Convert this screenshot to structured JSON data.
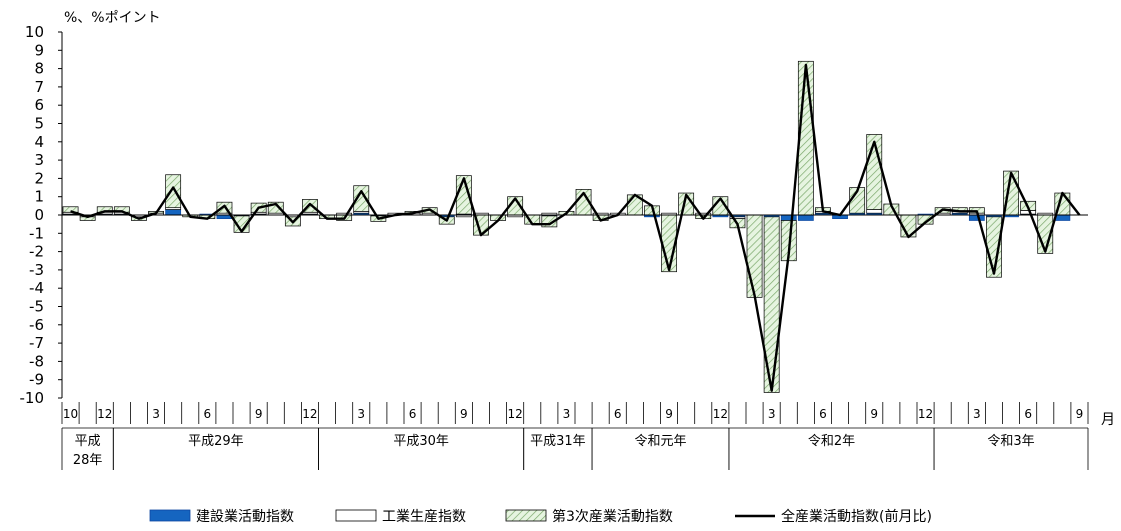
{
  "chart_data": {
    "type": "bar",
    "title": "",
    "ylabel": "%、%ポイント",
    "xlabel": "月",
    "ylim": [
      -10,
      10
    ],
    "y_ticks": [
      10,
      9,
      8,
      7,
      6,
      5,
      4,
      3,
      2,
      1,
      0,
      -1,
      -2,
      -3,
      -4,
      -5,
      -6,
      -7,
      -8,
      -9,
      -10
    ],
    "month_labels": [
      "10",
      "12",
      "3",
      "6",
      "9",
      "12",
      "3",
      "6",
      "9",
      "12",
      "3",
      "6",
      "9",
      "12",
      "3",
      "6",
      "9",
      "12",
      "3",
      "6",
      "9"
    ],
    "eras": [
      {
        "label": "平成28年",
        "label_line1": "平成",
        "label_line2": "28年",
        "start": 0,
        "end": 3
      },
      {
        "label": "平成29年",
        "start": 3,
        "end": 15
      },
      {
        "label": "平成30年",
        "start": 15,
        "end": 27
      },
      {
        "label": "平成31年",
        "start": 27,
        "end": 31
      },
      {
        "label": "令和元年",
        "start": 31,
        "end": 39
      },
      {
        "label": "令和2年",
        "start": 39,
        "end": 51
      },
      {
        "label": "令和3年",
        "start": 51,
        "end": 60
      }
    ],
    "series": [
      {
        "name": "建設業活動指数",
        "style": "solid",
        "color": "#1565c0",
        "values": [
          0.05,
          0.0,
          0.05,
          0.05,
          0.0,
          0.0,
          0.3,
          0.0,
          0.05,
          -0.2,
          -0.05,
          0.05,
          0.0,
          0.0,
          0.05,
          0.0,
          0.0,
          0.1,
          -0.05,
          0.0,
          0.0,
          0.0,
          -0.1,
          0.05,
          0.0,
          0.0,
          0.0,
          0.0,
          -0.05,
          0.0,
          0.0,
          0.0,
          0.0,
          0.0,
          -0.1,
          0.0,
          0.0,
          0.0,
          -0.1,
          -0.1,
          0.0,
          -0.1,
          -0.3,
          -0.3,
          0.1,
          -0.2,
          0.1,
          0.1,
          0.0,
          0.0,
          0.05,
          0.0,
          0.1,
          -0.3,
          -0.1,
          -0.1,
          0.05,
          0.0,
          -0.3,
          0.0
        ]
      },
      {
        "name": "工業生産指数",
        "style": "white",
        "color": "#ffffff",
        "values": [
          0.1,
          -0.1,
          0.1,
          0.1,
          -0.1,
          0.1,
          0.1,
          0.0,
          0.0,
          0.1,
          0.0,
          0.1,
          0.1,
          -0.1,
          0.1,
          0.0,
          0.1,
          0.1,
          0.0,
          0.1,
          0.1,
          0.1,
          0.0,
          -0.1,
          0.1,
          0.0,
          -0.1,
          0.0,
          0.1,
          0.0,
          0.0,
          0.1,
          0.1,
          0.0,
          0.0,
          0.1,
          0.0,
          0.1,
          0.0,
          -0.1,
          0.0,
          0.0,
          0.0,
          0.0,
          0.1,
          0.0,
          0.0,
          0.2,
          0.0,
          0.0,
          0.0,
          0.1,
          0.1,
          0.1,
          0.0,
          0.0,
          0.2,
          0.1,
          0.0,
          0.0
        ]
      },
      {
        "name": "第3次産業活動指数",
        "style": "hatched",
        "color": "#d9ead3",
        "values": [
          0.3,
          -0.2,
          0.3,
          0.3,
          -0.2,
          0.1,
          1.8,
          -0.1,
          -0.2,
          0.6,
          -0.9,
          0.5,
          0.6,
          -0.5,
          0.7,
          -0.2,
          -0.3,
          1.4,
          -0.3,
          0.0,
          0.1,
          0.3,
          -0.4,
          2.1,
          -1.1,
          -0.3,
          1.0,
          -0.5,
          -0.6,
          0.2,
          1.4,
          -0.3,
          0.0,
          1.1,
          0.5,
          -3.1,
          1.2,
          -0.2,
          1.0,
          -0.5,
          -4.5,
          -9.6,
          -2.2,
          8.4,
          0.2,
          0.0,
          1.4,
          4.1,
          0.6,
          -1.2,
          -0.5,
          0.3,
          0.2,
          0.3,
          -3.3,
          2.4,
          0.5,
          -2.1,
          1.2,
          0.0
        ]
      },
      {
        "name": "全産業活動指数(前月比)",
        "style": "line",
        "color": "#000000",
        "values": [
          0.2,
          -0.1,
          0.2,
          0.2,
          -0.2,
          0.1,
          1.5,
          -0.1,
          -0.2,
          0.5,
          -0.9,
          0.4,
          0.6,
          -0.4,
          0.6,
          -0.2,
          -0.2,
          1.3,
          -0.2,
          0.0,
          0.1,
          0.3,
          -0.3,
          2.0,
          -1.1,
          -0.3,
          0.9,
          -0.5,
          -0.5,
          0.1,
          1.2,
          -0.3,
          0.0,
          1.1,
          0.5,
          -3.0,
          1.1,
          -0.2,
          0.9,
          -0.5,
          -4.4,
          -9.6,
          -2.1,
          8.2,
          0.2,
          0.0,
          1.3,
          4.0,
          0.5,
          -1.2,
          -0.4,
          0.3,
          0.2,
          0.2,
          -3.2,
          2.3,
          0.4,
          -2.0,
          1.2,
          0.0
        ]
      }
    ],
    "grid": false,
    "legend_position": "bottom"
  }
}
